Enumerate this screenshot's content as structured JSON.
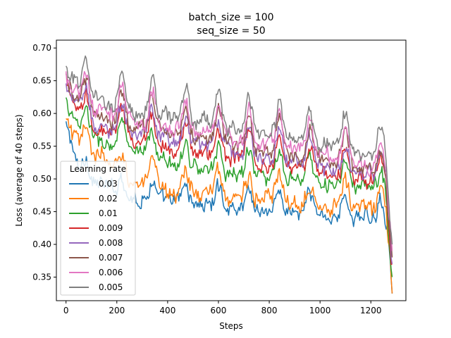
{
  "chart_data": {
    "type": "line",
    "title": "batch_size = 100",
    "subtitle": "seq_size = 50",
    "xlabel": "Steps",
    "ylabel": "Loss (average of 40 steps)",
    "xlim": [
      -38,
      1338
    ],
    "ylim": [
      0.314,
      0.712
    ],
    "x_ticks": [
      0,
      200,
      400,
      600,
      800,
      1000,
      1200
    ],
    "y_ticks": [
      0.35,
      0.4,
      0.45,
      0.5,
      0.55,
      0.6,
      0.65,
      0.7
    ],
    "x_tick_labels": [
      "0",
      "200",
      "400",
      "600",
      "800",
      "1000",
      "1200"
    ],
    "y_tick_labels": [
      "0.35",
      "0.40",
      "0.45",
      "0.50",
      "0.55",
      "0.60",
      "0.65",
      "0.70"
    ],
    "grid": false,
    "legend": {
      "title": "Learning rate",
      "position": "lower-left"
    },
    "x_step": 4,
    "x_max": 1284,
    "series": [
      {
        "name": "0.03",
        "color": "#1f77b4",
        "anchors": [
          [
            0,
            0.58
          ],
          [
            20,
            0.56
          ],
          [
            40,
            0.52
          ],
          [
            80,
            0.5
          ],
          [
            150,
            0.49
          ],
          [
            250,
            0.47
          ],
          [
            400,
            0.465
          ],
          [
            550,
            0.46
          ],
          [
            700,
            0.455
          ],
          [
            850,
            0.45
          ],
          [
            1000,
            0.445
          ],
          [
            1150,
            0.44
          ],
          [
            1240,
            0.44
          ],
          [
            1270,
            0.42
          ],
          [
            1284,
            0.325
          ]
        ],
        "noise": 0.012,
        "bump": 0.03
      },
      {
        "name": "0.02",
        "color": "#ff7f0e",
        "anchors": [
          [
            0,
            0.585
          ],
          [
            20,
            0.575
          ],
          [
            50,
            0.55
          ],
          [
            100,
            0.54
          ],
          [
            150,
            0.53
          ],
          [
            200,
            0.51
          ],
          [
            300,
            0.49
          ],
          [
            450,
            0.48
          ],
          [
            600,
            0.475
          ],
          [
            750,
            0.47
          ],
          [
            900,
            0.465
          ],
          [
            1050,
            0.46
          ],
          [
            1200,
            0.455
          ],
          [
            1260,
            0.45
          ],
          [
            1284,
            0.325
          ]
        ],
        "noise": 0.014,
        "bump": 0.035
      },
      {
        "name": "0.01",
        "color": "#2ca02c",
        "anchors": [
          [
            0,
            0.62
          ],
          [
            40,
            0.58
          ],
          [
            100,
            0.56
          ],
          [
            200,
            0.55
          ],
          [
            300,
            0.535
          ],
          [
            450,
            0.52
          ],
          [
            600,
            0.51
          ],
          [
            750,
            0.505
          ],
          [
            900,
            0.495
          ],
          [
            1050,
            0.49
          ],
          [
            1200,
            0.485
          ],
          [
            1260,
            0.47
          ],
          [
            1284,
            0.35
          ]
        ],
        "noise": 0.012,
        "bump": 0.04
      },
      {
        "name": "0.009",
        "color": "#d62728",
        "anchors": [
          [
            0,
            0.64
          ],
          [
            40,
            0.6
          ],
          [
            100,
            0.575
          ],
          [
            200,
            0.565
          ],
          [
            300,
            0.555
          ],
          [
            450,
            0.545
          ],
          [
            600,
            0.535
          ],
          [
            750,
            0.525
          ],
          [
            900,
            0.515
          ],
          [
            1050,
            0.505
          ],
          [
            1200,
            0.495
          ],
          [
            1260,
            0.48
          ],
          [
            1284,
            0.37
          ]
        ],
        "noise": 0.012,
        "bump": 0.045
      },
      {
        "name": "0.008",
        "color": "#9467bd",
        "anchors": [
          [
            0,
            0.645
          ],
          [
            40,
            0.61
          ],
          [
            100,
            0.585
          ],
          [
            200,
            0.575
          ],
          [
            300,
            0.565
          ],
          [
            450,
            0.555
          ],
          [
            600,
            0.545
          ],
          [
            750,
            0.535
          ],
          [
            900,
            0.525
          ],
          [
            1050,
            0.515
          ],
          [
            1200,
            0.505
          ],
          [
            1260,
            0.49
          ],
          [
            1284,
            0.37
          ]
        ],
        "noise": 0.012,
        "bump": 0.045
      },
      {
        "name": "0.007",
        "color": "#8c564b",
        "anchors": [
          [
            0,
            0.65
          ],
          [
            40,
            0.62
          ],
          [
            100,
            0.595
          ],
          [
            200,
            0.585
          ],
          [
            300,
            0.575
          ],
          [
            450,
            0.565
          ],
          [
            600,
            0.555
          ],
          [
            750,
            0.545
          ],
          [
            900,
            0.535
          ],
          [
            1050,
            0.525
          ],
          [
            1200,
            0.51
          ],
          [
            1260,
            0.495
          ],
          [
            1284,
            0.38
          ]
        ],
        "noise": 0.012,
        "bump": 0.05
      },
      {
        "name": "0.006",
        "color": "#e377c2",
        "anchors": [
          [
            0,
            0.655
          ],
          [
            40,
            0.63
          ],
          [
            100,
            0.605
          ],
          [
            200,
            0.595
          ],
          [
            300,
            0.585
          ],
          [
            450,
            0.575
          ],
          [
            600,
            0.565
          ],
          [
            750,
            0.555
          ],
          [
            900,
            0.545
          ],
          [
            1050,
            0.535
          ],
          [
            1200,
            0.52
          ],
          [
            1260,
            0.5
          ],
          [
            1284,
            0.39
          ]
        ],
        "noise": 0.012,
        "bump": 0.05
      },
      {
        "name": "0.005",
        "color": "#7f7f7f",
        "anchors": [
          [
            0,
            0.665
          ],
          [
            40,
            0.645
          ],
          [
            100,
            0.625
          ],
          [
            200,
            0.61
          ],
          [
            300,
            0.6
          ],
          [
            450,
            0.59
          ],
          [
            600,
            0.58
          ],
          [
            750,
            0.57
          ],
          [
            900,
            0.56
          ],
          [
            1050,
            0.55
          ],
          [
            1200,
            0.54
          ],
          [
            1260,
            0.52
          ],
          [
            1284,
            0.4
          ]
        ],
        "noise": 0.012,
        "bump": 0.055
      }
    ],
    "peaks": [
      80,
      220,
      340,
      470,
      600,
      720,
      840,
      960,
      1100,
      1240
    ]
  }
}
